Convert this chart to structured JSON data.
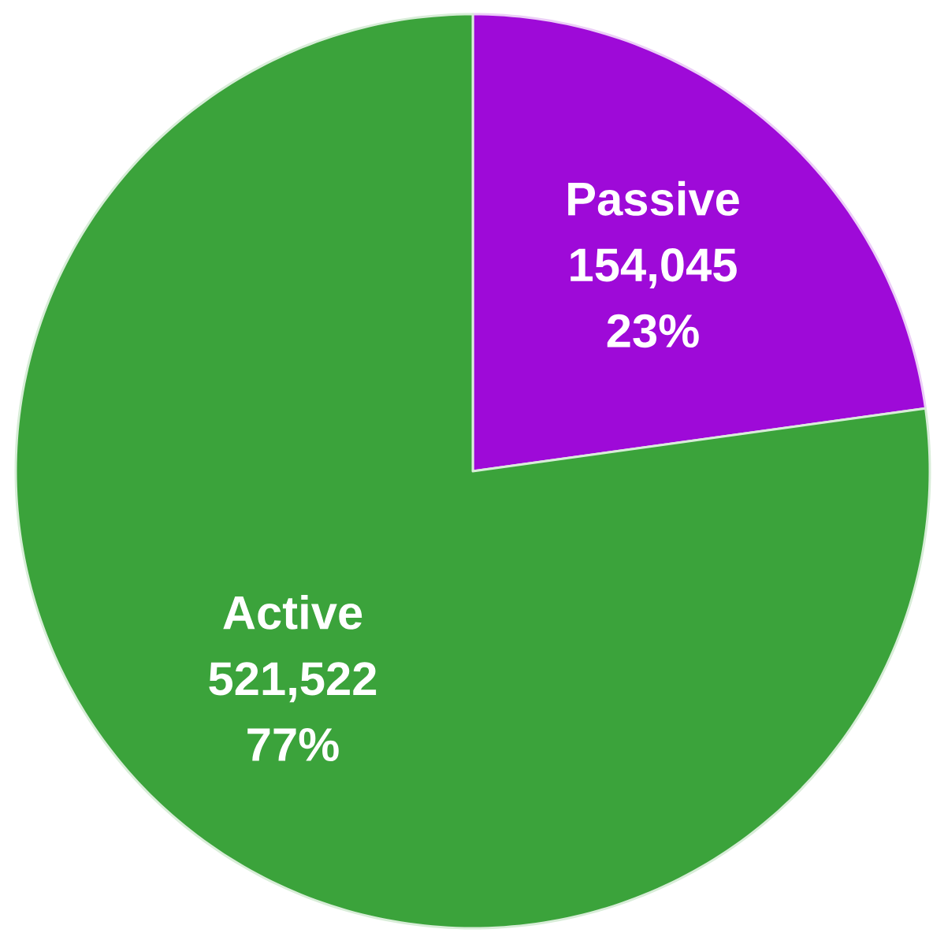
{
  "chart_data": {
    "type": "pie",
    "categories": [
      "Passive",
      "Active"
    ],
    "values": [
      154045,
      521522
    ],
    "colors": [
      "#9e0ad8",
      "#3ba33b"
    ],
    "value_labels": [
      "154,045",
      "521,522"
    ],
    "annotations": [
      "23%",
      "77%"
    ]
  }
}
